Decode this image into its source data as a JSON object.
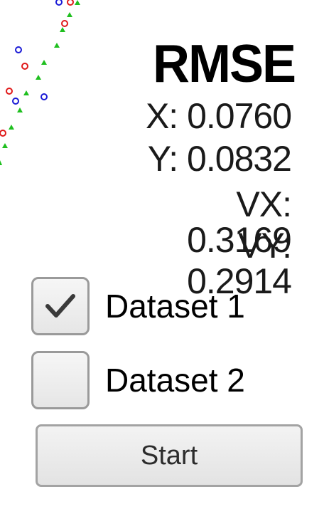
{
  "rmse": {
    "title": "RMSE",
    "x": "X: 0.0760",
    "y": "Y: 0.0832",
    "vx": "VX: 0.3169",
    "vy": "VY: 0.2914"
  },
  "datasets": [
    {
      "label": "Dataset 1",
      "checked": true
    },
    {
      "label": "Dataset 2",
      "checked": false
    }
  ],
  "start_button": {
    "label": "Start"
  },
  "plot_colors": {
    "marker_blue": "#1a1ad6",
    "marker_red": "#e01a1a",
    "marker_green": "#1fbf1f"
  }
}
